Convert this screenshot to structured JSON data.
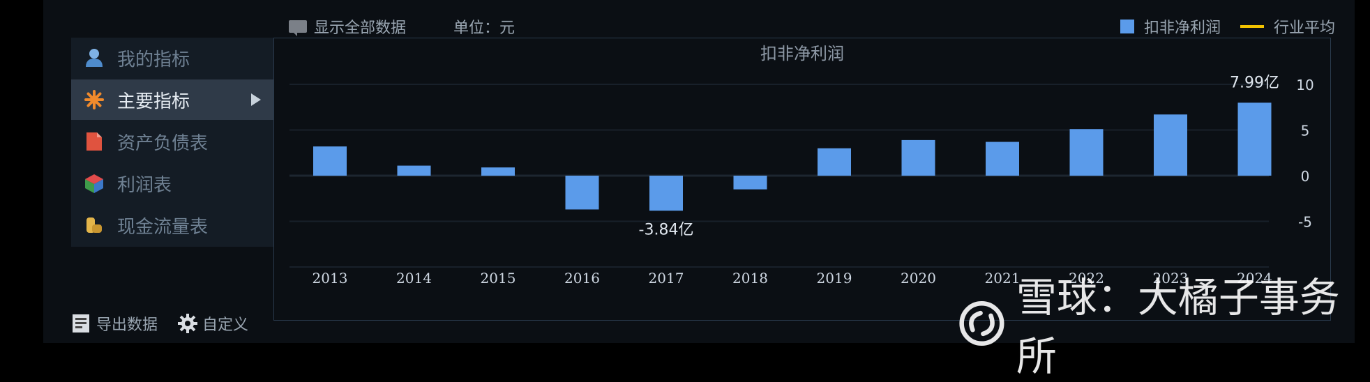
{
  "toolbar": {
    "show_all_label": "显示全部数据",
    "unit_label": "单位：元"
  },
  "legend": {
    "bar_label": "扣非净利润",
    "line_label": "行业平均"
  },
  "sidebar": {
    "items": [
      {
        "label": "我的指标",
        "icon": "person-icon",
        "active": false
      },
      {
        "label": "主要指标",
        "icon": "star-icon",
        "active": true
      },
      {
        "label": "资产负债表",
        "icon": "document-icon",
        "active": false
      },
      {
        "label": "利润表",
        "icon": "cube-icon",
        "active": false
      },
      {
        "label": "现金流量表",
        "icon": "coins-icon",
        "active": false
      }
    ]
  },
  "bottom": {
    "export_label": "导出数据",
    "custom_label": "自定义"
  },
  "watermark": {
    "text": "雪球：大橘子事务所"
  },
  "colors": {
    "bar": "#5b9bea",
    "average_line": "#f2c200",
    "text": "#cfd8e3"
  },
  "chart_data": {
    "type": "bar",
    "title": "扣非净利润",
    "categories": [
      "2013",
      "2014",
      "2015",
      "2016",
      "2017",
      "2018",
      "2019",
      "2020",
      "2021",
      "2022",
      "2023",
      "2024"
    ],
    "series": [
      {
        "name": "扣非净利润",
        "values": [
          3.2,
          1.1,
          0.9,
          -3.7,
          -3.84,
          -1.5,
          3.0,
          3.9,
          3.7,
          5.1,
          6.7,
          7.99
        ]
      }
    ],
    "ylim": [
      -10,
      10
    ],
    "yticks": [
      10,
      5,
      0,
      -5
    ],
    "data_labels": [
      {
        "category": "2017",
        "text": "-3.84亿"
      },
      {
        "category": "2024",
        "text": "7.99亿"
      }
    ],
    "xlabel": "",
    "ylabel": "",
    "grid": true,
    "legend_position": "top-right"
  }
}
